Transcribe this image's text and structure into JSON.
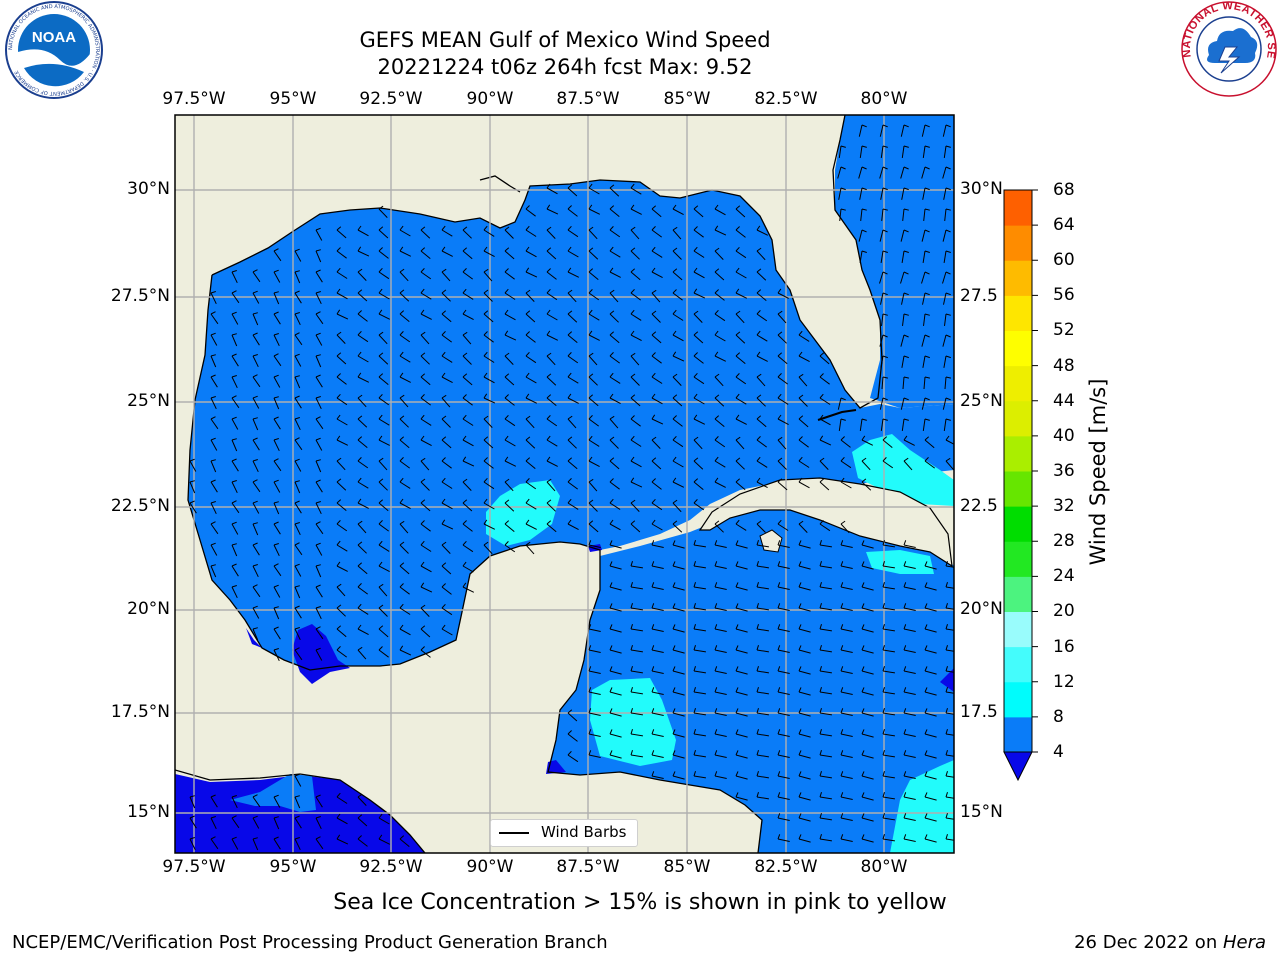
{
  "header": {
    "title_line1": "GEFS MEAN Gulf of Mexico Wind Speed",
    "title_line2": "20221224 t06z 264h fcst   Max: 9.52"
  },
  "logos": {
    "left_agency": "NOAA",
    "left_ring_text": "NATIONAL OCEANIC AND ATMOSPHERIC ADMINISTRATION · U.S. DEPARTMENT OF COMMERCE",
    "right_ring_text": "NATIONAL WEATHER SERVICE"
  },
  "map": {
    "lon_labels": [
      "97.5°W",
      "95°W",
      "92.5°W",
      "90°W",
      "87.5°W",
      "85°W",
      "82.5°W",
      "80°W"
    ],
    "lat_labels": [
      "30°N",
      "27.5°N",
      "25°N",
      "22.5°N",
      "20°N",
      "17.5°N",
      "15°N"
    ],
    "lat_labels_right": [
      "30°N",
      "27.5",
      "25°N",
      "22.5",
      "20°N",
      "17.5",
      "15°N"
    ],
    "extent": {
      "lon_min": -98,
      "lon_max": -78.2,
      "lat_min": 14,
      "lat_max": 31.8
    },
    "legend_label": "Wind Barbs",
    "colors": {
      "land": "#eeeedd",
      "speed_4_8": "#0a7cf8",
      "speed_8_12": "#22fbfb",
      "below_4": "#0808e8",
      "grid": "#b0b0b0"
    }
  },
  "colorbar": {
    "label": "Wind Speed [m/s]",
    "ticks": [
      "68",
      "64",
      "60",
      "56",
      "52",
      "48",
      "44",
      "40",
      "36",
      "32",
      "28",
      "24",
      "20",
      "16",
      "12",
      "8",
      "4"
    ],
    "colors": [
      "#0a7cf8",
      "#00fcfc",
      "#44fcfc",
      "#99fcfc",
      "#4cf37f",
      "#22e822",
      "#00dd00",
      "#66e600",
      "#aaee00",
      "#dcee00",
      "#eeee00",
      "#fefe00",
      "#fee600",
      "#febb00",
      "#fe8c00",
      "#fe6000",
      "#fe3200",
      "#fe0000"
    ],
    "extend_color": "#0808e8"
  },
  "ice_note": "Sea Ice Concentration > 15% is shown in pink to yellow",
  "footer": {
    "left": "NCEP/EMC/Verification Post Processing Product Generation Branch",
    "right_date": "26 Dec 2022 on ",
    "right_machine": "Hera"
  }
}
